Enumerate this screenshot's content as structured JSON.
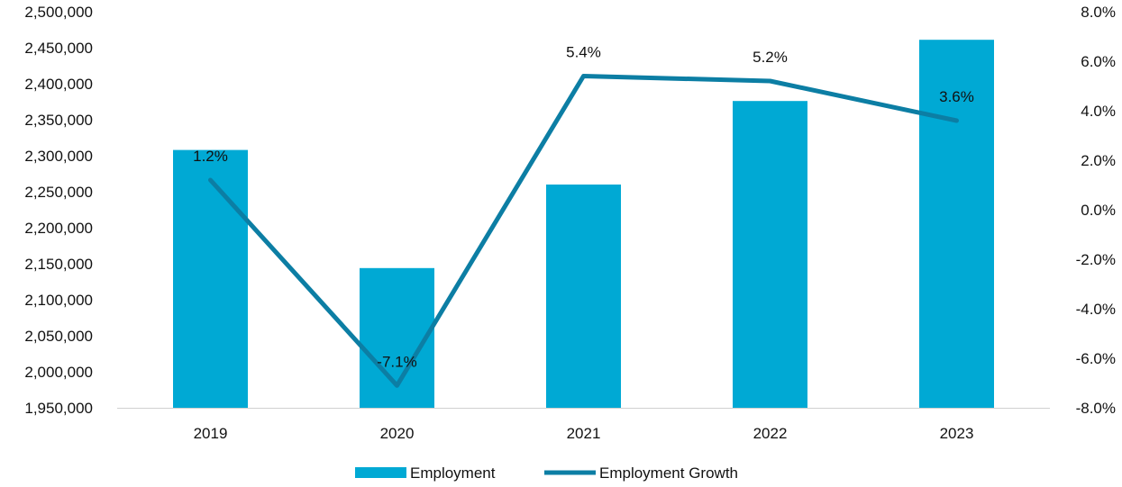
{
  "chart_data": {
    "type": "bar+line",
    "categories": [
      "2019",
      "2020",
      "2021",
      "2022",
      "2023"
    ],
    "series": [
      {
        "name": "Employment",
        "type": "bar",
        "axis": "left",
        "values": [
          2308000,
          2144000,
          2260000,
          2376000,
          2461000
        ],
        "color": "#00A9D4"
      },
      {
        "name": "Employment Growth",
        "type": "line",
        "axis": "right",
        "values": [
          1.2,
          -7.1,
          5.4,
          5.2,
          3.6
        ],
        "data_labels": [
          "1.2%",
          "-7.1%",
          "5.4%",
          "5.2%",
          "3.6%"
        ],
        "color": "#0C7EA4"
      }
    ],
    "y_left": {
      "ylim": [
        1950000,
        2500000
      ],
      "ticks": [
        "2,500,000",
        "2,450,000",
        "2,400,000",
        "2,350,000",
        "2,300,000",
        "2,250,000",
        "2,200,000",
        "2,150,000",
        "2,100,000",
        "2,050,000",
        "2,000,000",
        "1,950,000"
      ]
    },
    "y_right": {
      "ylim": [
        -8,
        8
      ],
      "ticks": [
        "8.0%",
        "6.0%",
        "4.0%",
        "2.0%",
        "0.0%",
        "-2.0%",
        "-4.0%",
        "-6.0%",
        "-8.0%"
      ]
    },
    "grid": false,
    "legend": "bottom"
  }
}
